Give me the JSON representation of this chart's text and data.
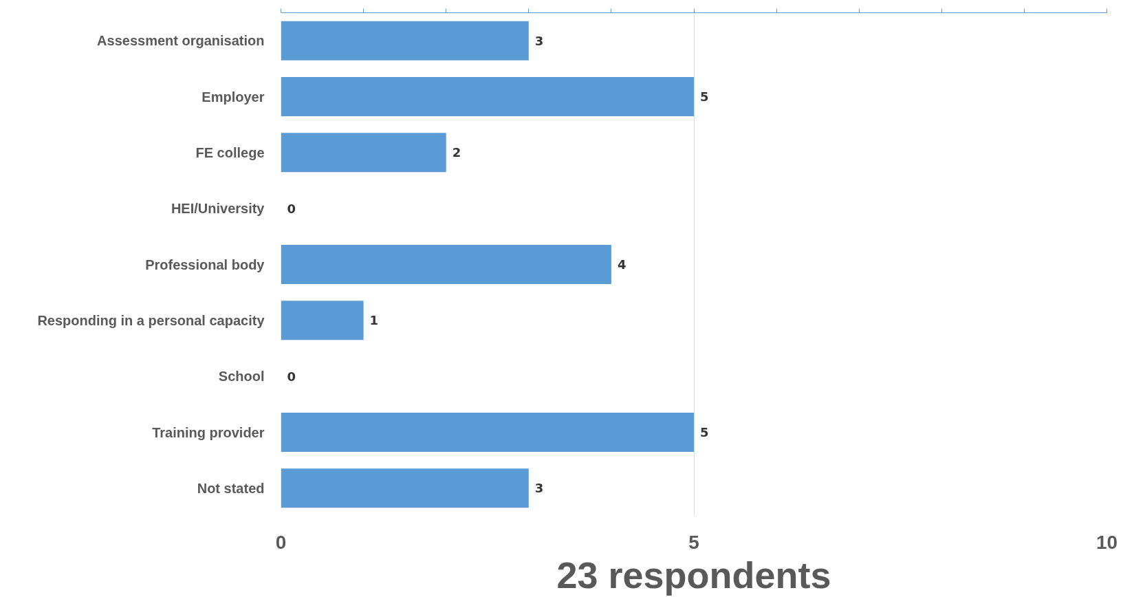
{
  "chart_data": {
    "type": "bar",
    "orientation": "horizontal",
    "xlabel": "23 respondents",
    "categories": [
      "Assessment organisation",
      "Employer",
      "FE college",
      "HEI/University",
      "Professional body",
      "Responding in a personal capacity",
      "School",
      "Training provider",
      "Not stated"
    ],
    "values": [
      3,
      5,
      2,
      0,
      4,
      1,
      0,
      5,
      3
    ],
    "color": "#5b9bd5",
    "xlim": [
      0,
      10
    ],
    "xticks": [
      0,
      5,
      10
    ],
    "grid": "x",
    "data_labels": true
  }
}
